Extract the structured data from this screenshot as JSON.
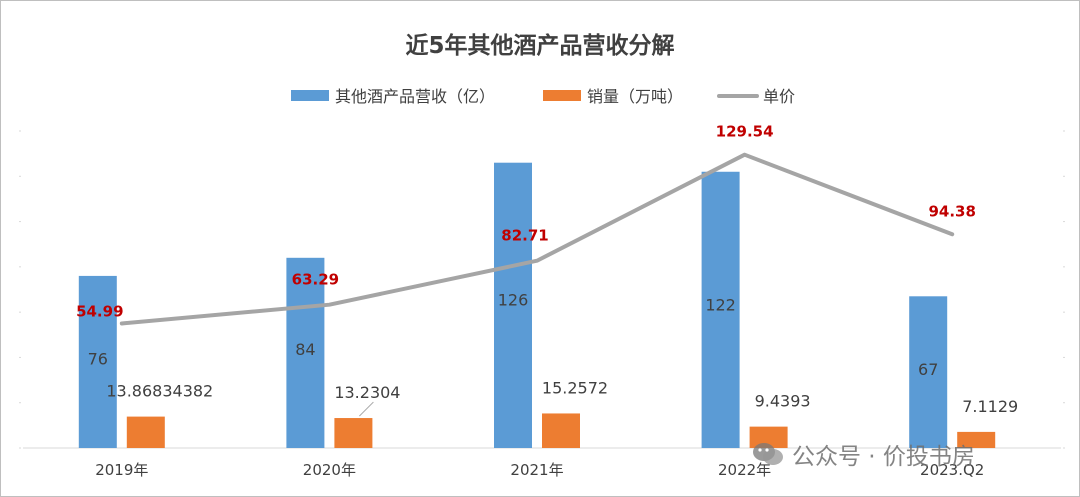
{
  "chart_data": {
    "type": "bar+line",
    "title": "近5年其他酒产品营收分解",
    "categories": [
      "2019年",
      "2020年",
      "2021年",
      "2022年",
      "2023.Q2"
    ],
    "series": [
      {
        "name": "其他酒产品营收（亿）",
        "kind": "bar",
        "color": "#5b9bd5",
        "values": [
          76,
          84,
          126,
          122,
          67
        ],
        "labels": [
          "76",
          "84",
          "126",
          "122",
          "67"
        ]
      },
      {
        "name": "销量（万吨）",
        "kind": "bar",
        "color": "#ed7d31",
        "values": [
          13.86834382,
          13.2304,
          15.2572,
          9.4393,
          7.1129
        ],
        "labels": [
          "13.86834382",
          "13.2304",
          "15.2572",
          "9.4393",
          "7.1129"
        ]
      },
      {
        "name": "单价",
        "kind": "line",
        "color": "#a5a5a5",
        "values": [
          54.99,
          63.29,
          82.71,
          129.54,
          94.38
        ],
        "labels": [
          "54.99",
          "63.29",
          "82.71",
          "129.54",
          "94.38"
        ],
        "label_color": "#c00000"
      }
    ],
    "ylim_bars": [
      0,
      140
    ],
    "ylim_line": [
      0,
      140
    ],
    "grid": false,
    "legend": "top"
  },
  "watermark": {
    "text": "公众号 · 价投书房",
    "icon": "wechat-icon"
  }
}
